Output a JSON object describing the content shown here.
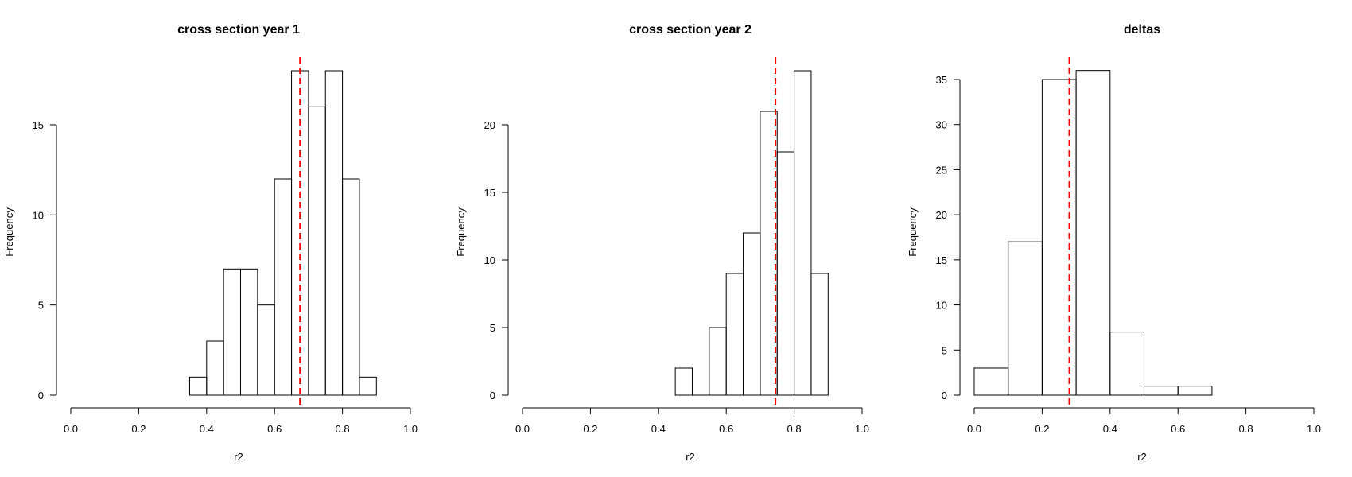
{
  "chart_data": [
    {
      "type": "bar",
      "title": "cross section year 1",
      "xlabel": "r2",
      "ylabel": "Frequency",
      "xlim": [
        0,
        1
      ],
      "ylim": [
        0,
        18
      ],
      "xticks": [
        "0.0",
        "0.2",
        "0.4",
        "0.6",
        "0.8",
        "1.0"
      ],
      "yticks": [
        "0",
        "5",
        "10",
        "15"
      ],
      "bin_edges": [
        0.35,
        0.4,
        0.45,
        0.5,
        0.55,
        0.6,
        0.65,
        0.7,
        0.75,
        0.8,
        0.85,
        0.9
      ],
      "values": [
        1,
        3,
        7,
        7,
        5,
        12,
        18,
        16,
        18,
        12,
        1
      ],
      "reference_line": {
        "x": 0.675,
        "color": "#ff0000",
        "style": "dashed"
      },
      "grid": false
    },
    {
      "type": "bar",
      "title": "cross section year 2",
      "xlabel": "r2",
      "ylabel": "Frequency",
      "xlim": [
        0,
        1
      ],
      "ylim": [
        0,
        24
      ],
      "xticks": [
        "0.0",
        "0.2",
        "0.4",
        "0.6",
        "0.8",
        "1.0"
      ],
      "yticks": [
        "0",
        "5",
        "10",
        "15",
        "20"
      ],
      "bin_edges": [
        0.45,
        0.5,
        0.55,
        0.6,
        0.65,
        0.7,
        0.75,
        0.8,
        0.85,
        0.9
      ],
      "values": [
        2,
        0,
        5,
        9,
        12,
        21,
        18,
        24,
        9
      ],
      "reference_line": {
        "x": 0.745,
        "color": "#ff0000",
        "style": "dashed"
      },
      "grid": false
    },
    {
      "type": "bar",
      "title": "deltas",
      "xlabel": "r2",
      "ylabel": "Frequency",
      "xlim": [
        0,
        1
      ],
      "ylim": [
        0,
        36
      ],
      "xticks": [
        "0.0",
        "0.2",
        "0.4",
        "0.6",
        "0.8",
        "1.0"
      ],
      "yticks": [
        "0",
        "5",
        "10",
        "15",
        "20",
        "25",
        "30",
        "35"
      ],
      "bin_edges": [
        0.0,
        0.1,
        0.2,
        0.3,
        0.4,
        0.5,
        0.6,
        0.7
      ],
      "values": [
        3,
        17,
        35,
        36,
        7,
        1,
        1
      ],
      "reference_line": {
        "x": 0.28,
        "color": "#ff0000",
        "style": "dashed"
      },
      "grid": false
    }
  ]
}
